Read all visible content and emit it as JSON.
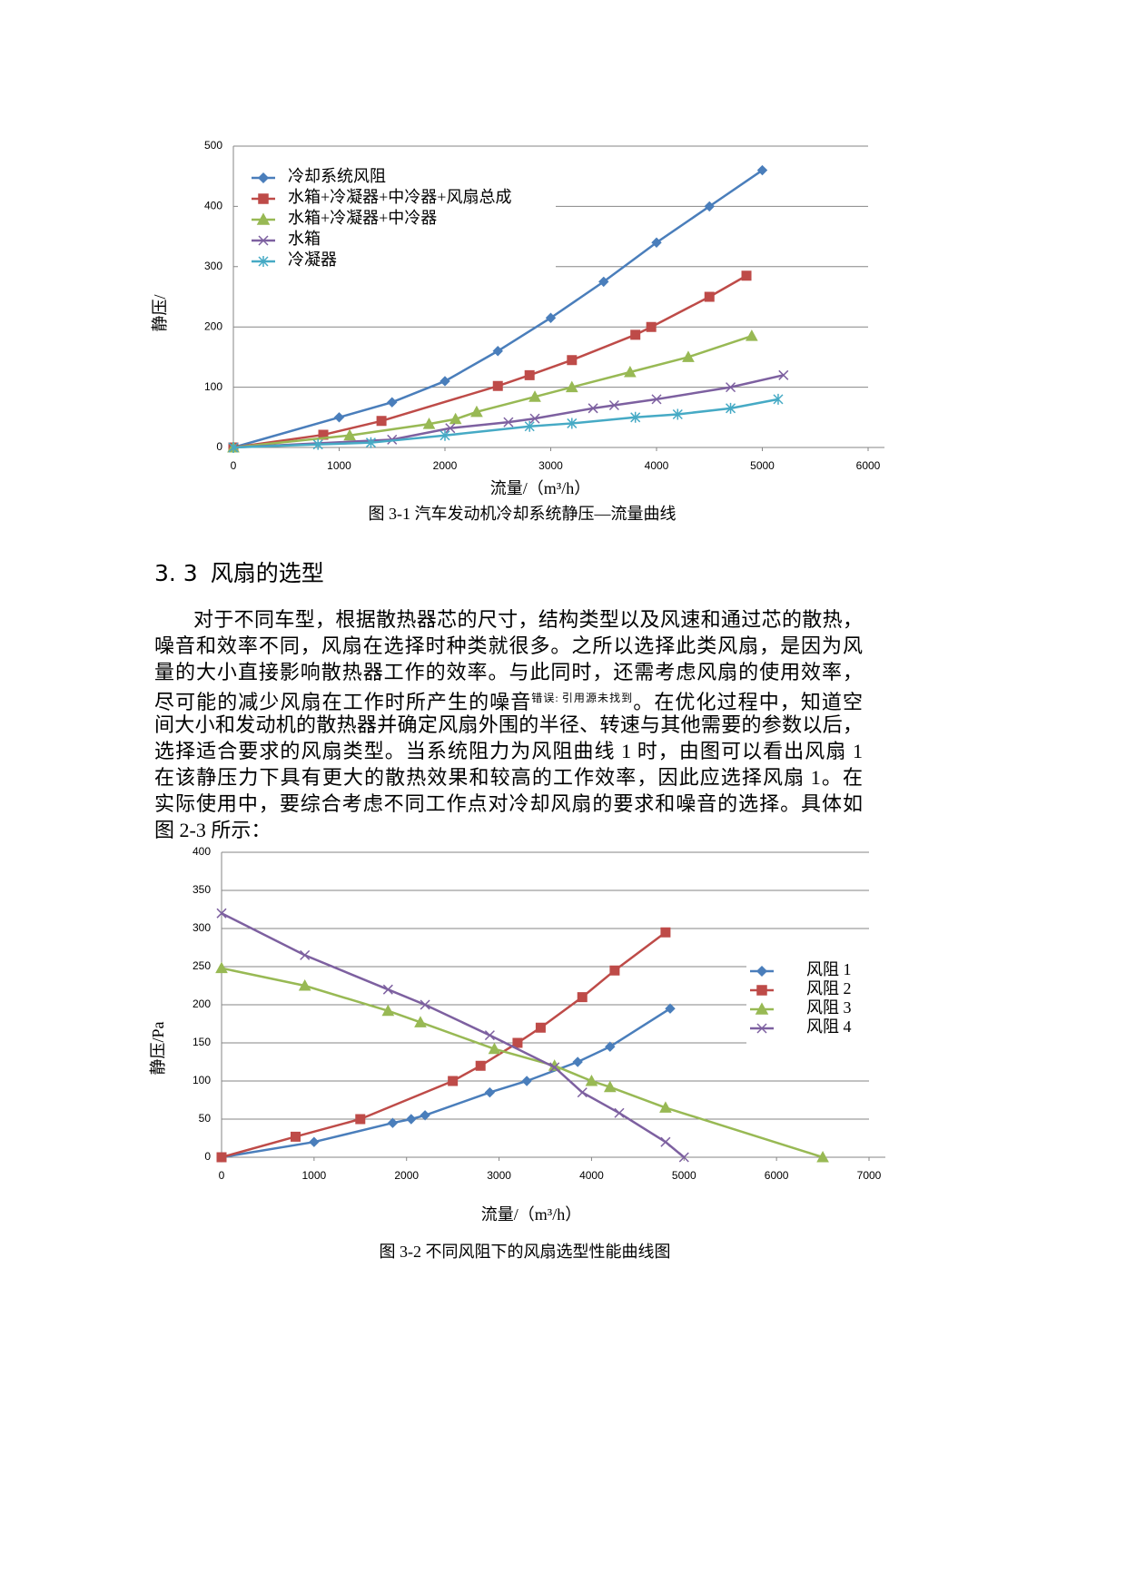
{
  "chart_data": [
    {
      "type": "line",
      "y_label": "静压/",
      "x_label": "流量/（m³/h）",
      "caption": "图 3-1 汽车发动机冷却系统静压—流量曲线",
      "xlim": [
        0,
        6000
      ],
      "xticks": [
        0,
        1000,
        2000,
        3000,
        4000,
        5000,
        6000
      ],
      "ylim": [
        0,
        500
      ],
      "yticks": [
        0,
        100,
        200,
        300,
        400,
        500
      ],
      "grid": true,
      "legend": "upper left",
      "series": [
        {
          "name": "冷却系统风阻",
          "color": "#4a7ebb",
          "marker": "diamond",
          "x": [
            0,
            1000,
            1500,
            2000,
            2500,
            3000,
            3500,
            4000,
            4500,
            5000
          ],
          "y": [
            0,
            50,
            75,
            110,
            160,
            215,
            275,
            340,
            400,
            460
          ]
        },
        {
          "name": "水箱+冷凝器+中冷器+风扇总成",
          "color": "#be4b48",
          "marker": "square",
          "x": [
            0,
            850,
            1400,
            2500,
            2800,
            3200,
            3800,
            3950,
            4500,
            4850
          ],
          "y": [
            0,
            21,
            44,
            102,
            120,
            145,
            187,
            200,
            250,
            285
          ]
        },
        {
          "name": "水箱+冷凝器+中冷器",
          "color": "#98b954",
          "marker": "triangle",
          "x": [
            0,
            1100,
            1850,
            2100,
            2300,
            2850,
            3200,
            3750,
            4300,
            4900
          ],
          "y": [
            0,
            20,
            39,
            47,
            59,
            84,
            100,
            125,
            150,
            185
          ]
        },
        {
          "name": "水箱",
          "color": "#7d60a0",
          "marker": "x",
          "x": [
            0,
            1500,
            2050,
            2600,
            2850,
            3400,
            3600,
            4000,
            4700,
            5200
          ],
          "y": [
            0,
            13,
            32,
            42,
            48,
            65,
            70,
            80,
            100,
            120
          ]
        },
        {
          "name": "冷凝器",
          "color": "#46aac5",
          "marker": "star",
          "x": [
            0,
            800,
            1300,
            2000,
            2800,
            3200,
            3800,
            4200,
            4700,
            5150
          ],
          "y": [
            0,
            5,
            8,
            20,
            35,
            40,
            50,
            55,
            65,
            80
          ]
        }
      ]
    },
    {
      "type": "line",
      "y_label": "静压/Pa",
      "x_label": "流量/（m³/h）",
      "caption": "图 3-2 不同风阻下的风扇选型性能曲线图",
      "xlim": [
        0,
        7000
      ],
      "xticks": [
        0,
        1000,
        2000,
        3000,
        4000,
        5000,
        6000,
        7000
      ],
      "ylim": [
        0,
        400
      ],
      "yticks": [
        0,
        50,
        100,
        150,
        200,
        250,
        300,
        350,
        400
      ],
      "grid": true,
      "legend": "right",
      "series": [
        {
          "name": "风阻 1",
          "color": "#4a7ebb",
          "marker": "diamond",
          "x": [
            0,
            1000,
            1850,
            2050,
            2200,
            2900,
            3300,
            3850,
            4200,
            4850
          ],
          "y": [
            0,
            20,
            45,
            50,
            55,
            85,
            100,
            125,
            145,
            195
          ]
        },
        {
          "name": "风阻 2",
          "color": "#be4b48",
          "marker": "square",
          "x": [
            0,
            800,
            1500,
            2500,
            2800,
            3200,
            3450,
            3900,
            4250,
            4800
          ],
          "y": [
            0,
            27,
            50,
            100,
            120,
            150,
            170,
            210,
            245,
            295
          ]
        },
        {
          "name": "风阻 3",
          "color": "#98b954",
          "marker": "triangle",
          "x": [
            0,
            900,
            1800,
            2150,
            2950,
            3600,
            4000,
            4200,
            4800,
            6500
          ],
          "y": [
            248,
            225,
            192,
            177,
            142,
            120,
            100,
            92,
            65,
            0
          ]
        },
        {
          "name": "风阻 4",
          "color": "#7d60a0",
          "marker": "x",
          "x": [
            0,
            900,
            1800,
            2200,
            2900,
            3600,
            3900,
            4300,
            4800,
            5000
          ],
          "y": [
            320,
            265,
            220,
            200,
            160,
            118,
            85,
            58,
            20,
            0
          ]
        }
      ]
    }
  ],
  "section": {
    "number": "3. 3",
    "title": "风扇的选型"
  },
  "paragraph": {
    "lines": [
      "对于不同车型，根据散热器芯的尺寸，结构类型以及风速和通过芯的散热，",
      "噪音和效率不同，风扇在选择时种类就很多。之所以选择此类风扇，是因为风",
      "量的大小直接影响散热器工作的效率。与此同时，还需考虑风扇的使用效率，",
      {
        "before": "尽可能的减少风扇在工作时所产生的噪音",
        "reference_error": "错误: 引用源未找到",
        "after": "。在优化过程中，知道空"
      },
      "间大小和发动机的散热器并确定风扇外围的半径、转速与其他需要的参数以后，",
      "选择适合要求的风扇类型。当系统阻力为风阻曲线 1 时，由图可以看出风扇 1",
      "在该静压力下具有更大的散热效果和较高的工作效率，因此应选择风扇 1。在",
      "实际使用中，要综合考虑不同工作点对冷却风扇的要求和噪音的选择。具体如",
      "图 2-3 所示："
    ]
  }
}
